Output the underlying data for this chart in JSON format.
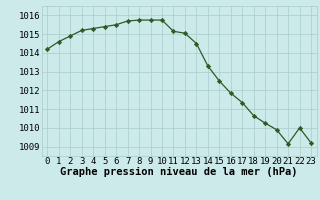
{
  "x": [
    0,
    1,
    2,
    3,
    4,
    5,
    6,
    7,
    8,
    9,
    10,
    11,
    12,
    13,
    14,
    15,
    16,
    17,
    18,
    19,
    20,
    21,
    22,
    23
  ],
  "y": [
    1014.2,
    1014.6,
    1014.9,
    1015.2,
    1015.3,
    1015.4,
    1015.5,
    1015.7,
    1015.75,
    1015.75,
    1015.75,
    1015.15,
    1015.05,
    1014.5,
    1013.3,
    1012.5,
    1011.85,
    1011.35,
    1010.65,
    1010.25,
    1009.9,
    1009.15,
    1010.0,
    1009.2
  ],
  "line_color": "#2d5a27",
  "marker": "D",
  "marker_size": 2.2,
  "bg_color": "#cceaea",
  "grid_color": "#aacaca",
  "xlabel": "Graphe pression niveau de la mer (hPa)",
  "ylim": [
    1008.5,
    1016.5
  ],
  "xlim": [
    -0.5,
    23.5
  ],
  "yticks": [
    1009,
    1010,
    1011,
    1012,
    1013,
    1014,
    1015,
    1016
  ],
  "xticks": [
    0,
    1,
    2,
    3,
    4,
    5,
    6,
    7,
    8,
    9,
    10,
    11,
    12,
    13,
    14,
    15,
    16,
    17,
    18,
    19,
    20,
    21,
    22,
    23
  ],
  "xlabel_fontsize": 7.5,
  "tick_fontsize": 6.5,
  "linewidth": 0.9
}
